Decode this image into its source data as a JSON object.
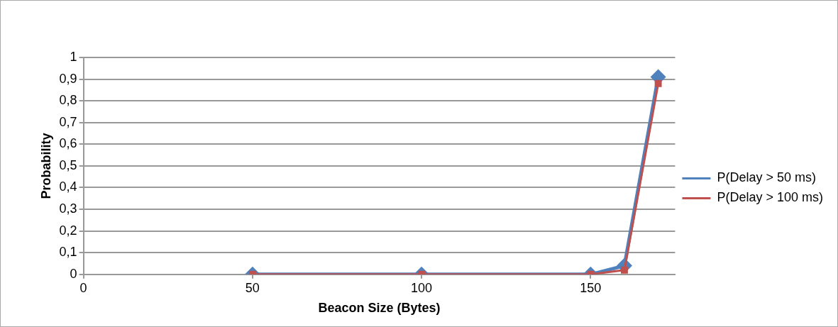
{
  "chart_data": {
    "type": "line",
    "xlabel": "Beacon Size (Bytes)",
    "ylabel": "Probability",
    "x": [
      50,
      100,
      150,
      160,
      170
    ],
    "series": [
      {
        "name": "P(Delay > 50 ms)",
        "color": "#4f81bd",
        "marker": "diamond",
        "values": [
          0,
          0,
          0,
          0.04,
          0.91
        ]
      },
      {
        "name": "P(Delay > 100 ms)",
        "color": "#c0504d",
        "marker": "square",
        "values": [
          0,
          0,
          0,
          0.02,
          0.88
        ]
      }
    ],
    "xlim": [
      0,
      175
    ],
    "xticks": [
      0,
      50,
      100,
      150
    ],
    "ylim": [
      0,
      1
    ],
    "yticks": [
      0,
      {
        "value": 0.1,
        "label": "0,1"
      },
      {
        "value": 0.2,
        "label": "0,2"
      },
      {
        "value": 0.3,
        "label": "0,3"
      },
      {
        "value": 0.4,
        "label": "0,4"
      },
      {
        "value": 0.5,
        "label": "0,5"
      },
      {
        "value": 0.6,
        "label": "0,6"
      },
      {
        "value": 0.7,
        "label": "0,7"
      },
      {
        "value": 0.8,
        "label": "0,8"
      },
      {
        "value": 0.9,
        "label": "0,9"
      },
      1
    ],
    "grid": "y",
    "legend": "right",
    "line_style": "solid"
  }
}
